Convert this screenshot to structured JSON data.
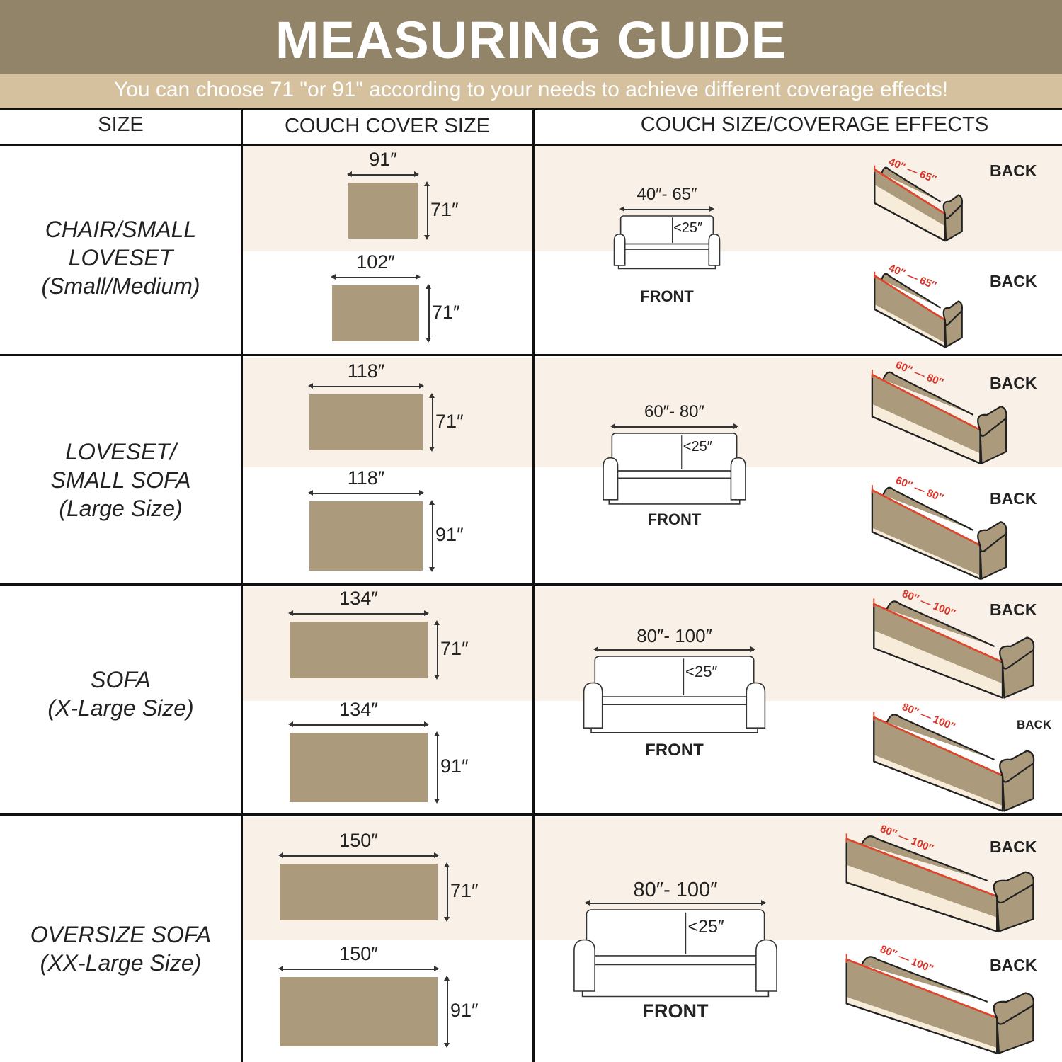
{
  "title": "MEASURING GUIDE",
  "subtitle": "You can choose 71 \"or 91\" according to your needs to achieve different coverage effects!",
  "headers": {
    "size": "SIZE",
    "cover": "COUCH COVER SIZE",
    "coverage": "COUCH SIZE/COVERAGE EFFECTS"
  },
  "colors": {
    "title_band": "#928469",
    "subtitle_band": "#d5c19d",
    "row_highlight": "#f9f1e7",
    "cover_swatch": "#ab9b7c",
    "measure_line": "#e0442a"
  },
  "rows": [
    {
      "size_lines": [
        "CHAIR/SMALL",
        "LOVESET",
        "(Small/Medium)"
      ],
      "covers": [
        {
          "width": "91″",
          "height": "71″"
        },
        {
          "width": "102″",
          "height": "71″"
        }
      ],
      "front": {
        "width": "40″- 65″",
        "depth": "<25″",
        "label": "FRONT"
      },
      "backs": [
        {
          "from": "40″",
          "to": "65″",
          "label": "BACK"
        },
        {
          "from": "40″",
          "to": "65″",
          "label": "BACK"
        }
      ]
    },
    {
      "size_lines": [
        "LOVESET/",
        "SMALL SOFA",
        "(Large Size)"
      ],
      "covers": [
        {
          "width": "118″",
          "height": "71″"
        },
        {
          "width": "118″",
          "height": "91″"
        }
      ],
      "front": {
        "width": "60″- 80″",
        "depth": "<25″",
        "label": "FRONT"
      },
      "backs": [
        {
          "from": "60″",
          "to": "80″",
          "label": "BACK"
        },
        {
          "from": "60″",
          "to": "80″",
          "label": "BACK"
        }
      ]
    },
    {
      "size_lines": [
        "SOFA",
        "(X-Large Size)"
      ],
      "covers": [
        {
          "width": "134″",
          "height": "71″"
        },
        {
          "width": "134″",
          "height": "91″"
        }
      ],
      "front": {
        "width": "80″- 100″",
        "depth": "<25″",
        "label": "FRONT"
      },
      "backs": [
        {
          "from": "80″",
          "to": "100″",
          "label": "BACK"
        },
        {
          "from": "80″",
          "to": "100″",
          "label": "BACK"
        }
      ]
    },
    {
      "size_lines": [
        "OVERSIZE SOFA",
        "(XX-Large  Size)"
      ],
      "covers": [
        {
          "width": "150″",
          "height": "71″"
        },
        {
          "width": "150″",
          "height": "91″"
        }
      ],
      "front": {
        "width": "80″- 100″",
        "depth": "<25″",
        "label": "FRONT"
      },
      "backs": [
        {
          "from": "80″",
          "to": "100″",
          "label": "BACK"
        },
        {
          "from": "80″",
          "to": "100″",
          "label": "BACK"
        }
      ]
    }
  ]
}
